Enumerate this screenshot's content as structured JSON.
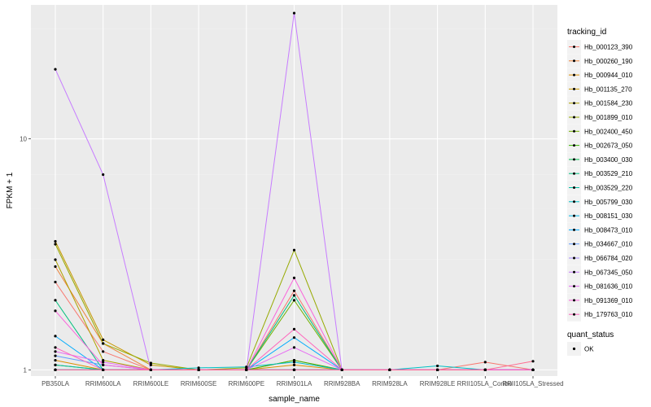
{
  "chart_data": {
    "type": "line",
    "xlabel": "sample_name",
    "ylabel": "FPKM + 1",
    "y_scale": "log10",
    "ylim": [
      0.94,
      38
    ],
    "y_ticks": [
      1,
      10
    ],
    "y_tick_labels": [
      "1",
      "10"
    ],
    "categories": [
      "PB350LA",
      "RRIM600LA",
      "RRIM600LE",
      "RRIM600SE",
      "RRIM600PE",
      "RRIM901LA",
      "RRIM928BA",
      "RRIM928LA",
      "RRIM928LE",
      "RRII105LA_Control",
      "RRII105LA_Stressed"
    ],
    "grid": true,
    "legend_position": "right",
    "legend_title": "tracking_id",
    "series": [
      {
        "name": "Hb_000123_390",
        "color": "#F8766D",
        "values": [
          2.4,
          1.2,
          1.0,
          1.0,
          1.0,
          2.2,
          1.0,
          1.0,
          1.0,
          1.08,
          1.0
        ]
      },
      {
        "name": "Hb_000260_190",
        "color": "#EC8239",
        "values": [
          2.8,
          1.3,
          1.0,
          1.0,
          1.0,
          1.1,
          1.0,
          1.0,
          1.0,
          1.0,
          1.0
        ]
      },
      {
        "name": "Hb_000944_010",
        "color": "#DB8E00",
        "values": [
          1.1,
          1.0,
          1.0,
          1.0,
          1.0,
          1.05,
          1.0,
          1.0,
          1.0,
          1.0,
          1.0
        ]
      },
      {
        "name": "Hb_001135_270",
        "color": "#C79800",
        "values": [
          3.6,
          1.35,
          1.05,
          1.0,
          1.0,
          1.0,
          1.0,
          1.0,
          1.0,
          1.0,
          1.0
        ]
      },
      {
        "name": "Hb_001584_230",
        "color": "#AFA100",
        "values": [
          3.0,
          1.1,
          1.0,
          1.0,
          1.0,
          1.0,
          1.0,
          1.0,
          1.0,
          1.0,
          1.0
        ]
      },
      {
        "name": "Hb_001899_010",
        "color": "#96A900",
        "values": [
          3.5,
          1.3,
          1.07,
          1.0,
          1.02,
          3.3,
          1.0,
          1.0,
          1.0,
          1.0,
          1.0
        ]
      },
      {
        "name": "Hb_002400_450",
        "color": "#72B000",
        "values": [
          1.05,
          1.0,
          1.0,
          1.0,
          1.0,
          2.0,
          1.0,
          1.0,
          1.0,
          1.0,
          1.0
        ]
      },
      {
        "name": "Hb_002673_050",
        "color": "#39B600",
        "values": [
          1.0,
          1.0,
          1.0,
          1.0,
          1.0,
          1.1,
          1.0,
          1.0,
          1.0,
          1.0,
          1.0
        ]
      },
      {
        "name": "Hb_003400_030",
        "color": "#00BB4E",
        "values": [
          1.0,
          1.0,
          1.0,
          1.0,
          1.0,
          1.0,
          1.0,
          1.0,
          1.0,
          1.0,
          1.0
        ]
      },
      {
        "name": "Hb_003529_210",
        "color": "#00BF7D",
        "values": [
          2.0,
          1.0,
          1.0,
          1.0,
          1.0,
          2.1,
          1.0,
          1.0,
          1.0,
          1.0,
          1.0
        ]
      },
      {
        "name": "Hb_003529_220",
        "color": "#00C1A3",
        "values": [
          1.05,
          1.0,
          1.0,
          1.0,
          1.0,
          1.0,
          1.0,
          1.0,
          1.0,
          1.0,
          1.0
        ]
      },
      {
        "name": "Hb_005799_030",
        "color": "#00BFC4",
        "values": [
          1.0,
          1.0,
          1.0,
          1.02,
          1.03,
          1.08,
          1.0,
          1.0,
          1.04,
          1.0,
          1.0
        ]
      },
      {
        "name": "Hb_008151_030",
        "color": "#00B8E5",
        "values": [
          1.0,
          1.0,
          1.0,
          1.0,
          1.0,
          1.0,
          1.0,
          1.0,
          1.0,
          1.0,
          1.0
        ]
      },
      {
        "name": "Hb_008473_010",
        "color": "#00ABFD",
        "values": [
          1.4,
          1.0,
          1.0,
          1.0,
          1.0,
          1.38,
          1.0,
          1.0,
          1.0,
          1.0,
          1.0
        ]
      },
      {
        "name": "Hb_034667_010",
        "color": "#619CFF",
        "values": [
          1.15,
          1.05,
          1.0,
          1.0,
          1.0,
          1.0,
          1.0,
          1.0,
          1.0,
          1.0,
          1.0
        ]
      },
      {
        "name": "Hb_066784_020",
        "color": "#A58AFF",
        "values": [
          1.0,
          1.0,
          1.0,
          1.0,
          1.0,
          1.0,
          1.0,
          1.0,
          1.0,
          1.0,
          1.0
        ]
      },
      {
        "name": "Hb_067345_050",
        "color": "#C77CFF",
        "values": [
          20.0,
          7.0,
          1.0,
          1.0,
          1.0,
          35.0,
          1.0,
          1.0,
          1.0,
          1.0,
          1.0
        ]
      },
      {
        "name": "Hb_081636_010",
        "color": "#E76BF3",
        "values": [
          1.2,
          1.08,
          1.0,
          1.0,
          1.0,
          1.25,
          1.0,
          1.0,
          1.0,
          1.0,
          1.0
        ]
      },
      {
        "name": "Hb_091369_010",
        "color": "#FA62DB",
        "values": [
          1.8,
          1.05,
          1.0,
          1.0,
          1.0,
          2.5,
          1.0,
          1.0,
          1.0,
          1.0,
          1.0
        ]
      },
      {
        "name": "Hb_179763_010",
        "color": "#FF62BC",
        "values": [
          1.25,
          1.0,
          1.0,
          1.0,
          1.0,
          1.5,
          1.0,
          1.0,
          1.0,
          1.0,
          1.0
        ]
      },
      {
        "name": "",
        "color": "#FF6C91",
        "values": [
          1.0,
          1.0,
          1.0,
          1.0,
          1.0,
          1.0,
          1.0,
          1.0,
          1.0,
          1.0,
          1.09
        ]
      }
    ],
    "point_legend_title": "quant_status",
    "point_legend_label": "OK"
  }
}
